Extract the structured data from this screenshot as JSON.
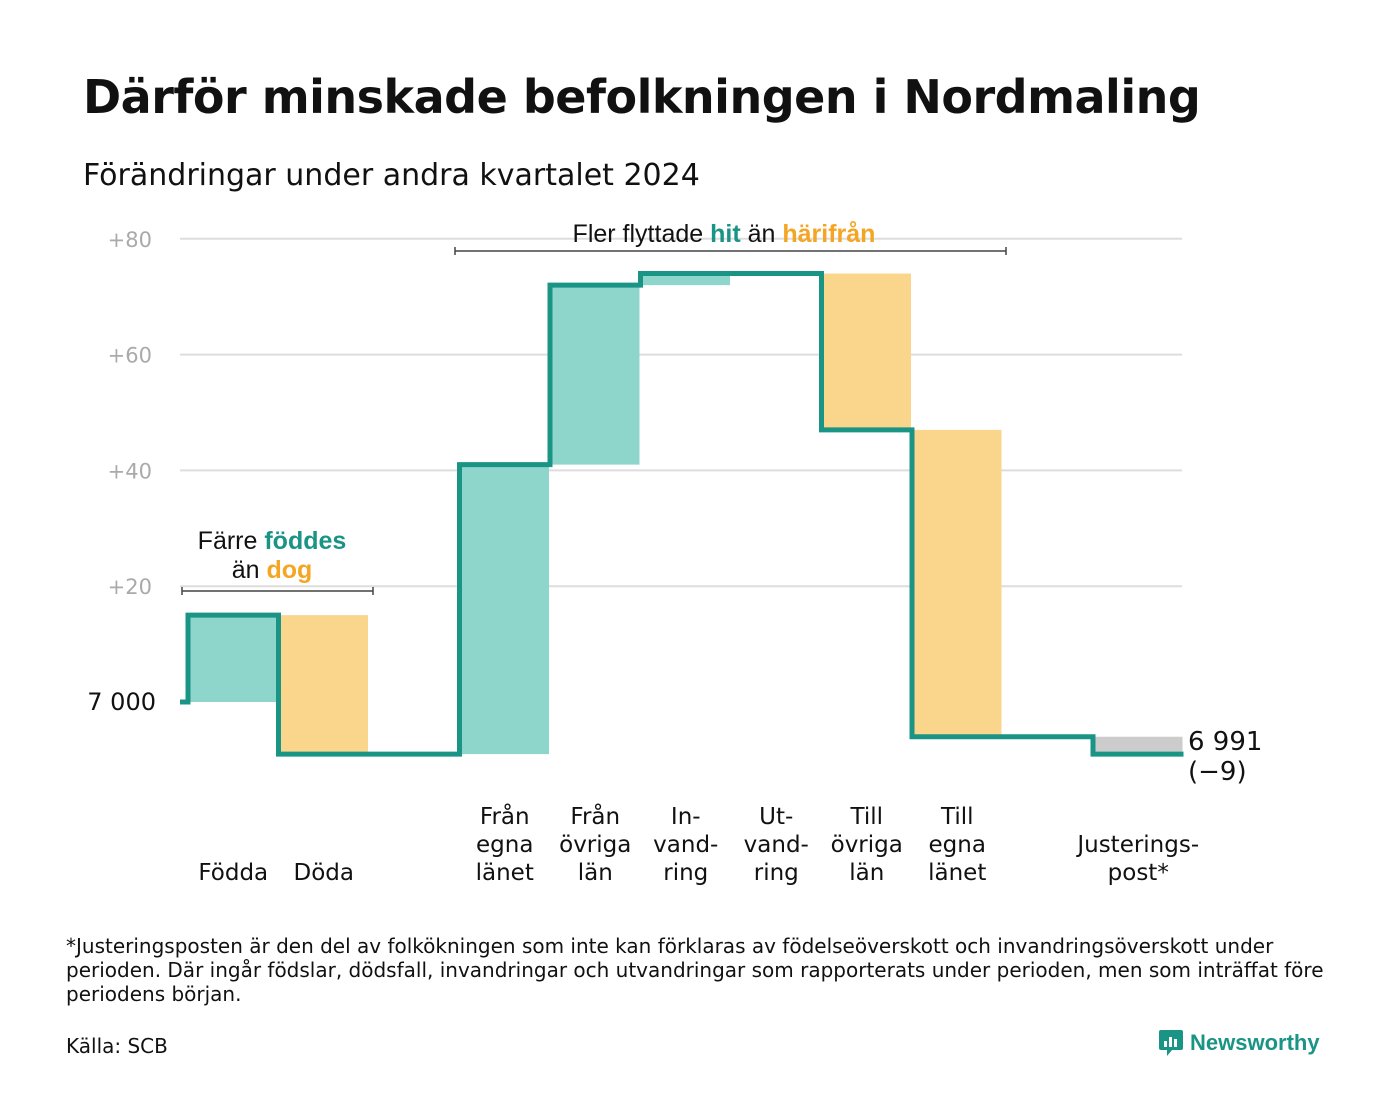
{
  "title": "Därför minskade befolkningen i Nordmaling",
  "subtitle": "Förändringar under andra kvartalet 2024",
  "footnote": "*Justeringsposten är den del av folkökningen som inte kan förklaras av födelseöverskott och invandringsöverskott under perioden. Där ingår födslar, dödsfall, invandringar och utvandringar som rapporterats under perioden, men som inträffat före periodens början.",
  "source": "Källa: SCB",
  "brand": {
    "name": "Newsworthy"
  },
  "colors": {
    "increase_fill": "#8ed5cb",
    "decrease_fill": "#fad58c",
    "adjustment_fill": "#cccccc",
    "line": "#1a9485",
    "accent_teal": "#1a9485",
    "accent_orange": "#f5a524",
    "grid": "#dddddd",
    "tick": "#aaaaaa"
  },
  "chart_data": {
    "type": "waterfall",
    "start_value": 7000,
    "start_label": "7 000",
    "end_label": "6 991",
    "end_change_label": "(−9)",
    "y_ticks": [
      {
        "value": 20,
        "label": "+20"
      },
      {
        "value": 40,
        "label": "+40"
      },
      {
        "value": 60,
        "label": "+60"
      },
      {
        "value": 80,
        "label": "+80"
      }
    ],
    "ylim": [
      -10,
      80
    ],
    "grid": true,
    "steps": [
      {
        "label": [
          "Födda"
        ],
        "change": 15,
        "kind": "increase"
      },
      {
        "label": [
          "Döda"
        ],
        "change": -24,
        "kind": "decrease"
      },
      {
        "label": [],
        "change": 0,
        "kind": "gap"
      },
      {
        "label": [
          "Från",
          "egna",
          "länet"
        ],
        "change": 50,
        "kind": "increase"
      },
      {
        "label": [
          "Från",
          "övriga",
          "län"
        ],
        "change": 31,
        "kind": "increase"
      },
      {
        "label": [
          "In-",
          "vand-",
          "ring"
        ],
        "change": 2,
        "kind": "increase"
      },
      {
        "label": [
          "Ut-",
          "vand-",
          "ring"
        ],
        "change": 0,
        "kind": "decrease"
      },
      {
        "label": [
          "Till",
          "övriga",
          "län"
        ],
        "change": -27,
        "kind": "decrease"
      },
      {
        "label": [
          "Till",
          "egna",
          "länet"
        ],
        "change": -53,
        "kind": "decrease"
      },
      {
        "label": [],
        "change": 0,
        "kind": "gap"
      },
      {
        "label": [
          "Justerings-",
          "post*"
        ],
        "change": -3,
        "kind": "adjustment"
      }
    ],
    "annotations": [
      {
        "id": "natural",
        "lines": [
          [
            {
              "text": "Färre ",
              "style": "plain"
            },
            {
              "text": "föddes",
              "style": "teal"
            }
          ],
          [
            {
              "text": "än ",
              "style": "plain"
            },
            {
              "text": "dog",
              "style": "orange"
            }
          ]
        ]
      },
      {
        "id": "migration",
        "lines": [
          [
            {
              "text": "Fler flyttade ",
              "style": "plain"
            },
            {
              "text": "hit",
              "style": "teal"
            },
            {
              "text": " än ",
              "style": "plain"
            },
            {
              "text": "härifrån",
              "style": "orange"
            }
          ]
        ]
      }
    ]
  }
}
